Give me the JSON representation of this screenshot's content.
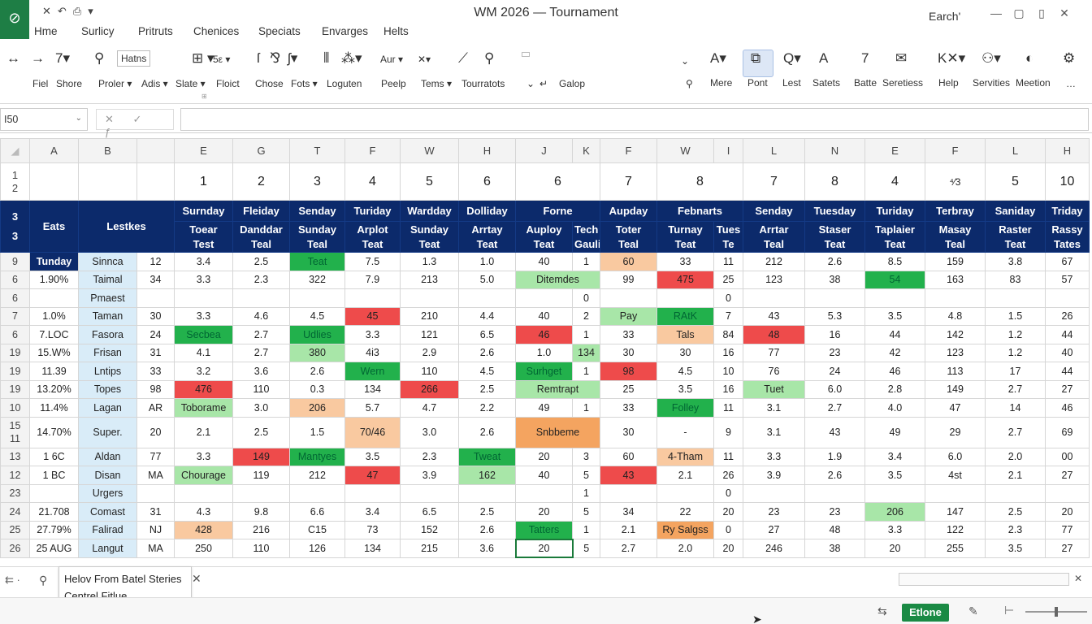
{
  "app": {
    "title": "WM 2026 — Tournament",
    "search_label": "Earch'"
  },
  "qat": {
    "items": [
      "✕",
      "↶",
      "⎙",
      "▾"
    ]
  },
  "window_controls": [
    "—",
    "▢",
    "▯",
    "✕"
  ],
  "tabs": [
    "Hme",
    "Surlicy",
    "Pritruts",
    "Chenices",
    "Speciats",
    "Envarges",
    "Helts"
  ],
  "ribbon": {
    "nav_icons": [
      "↔",
      "→",
      "7▾"
    ],
    "labels_row": [
      "Fiel",
      "Shore",
      "Proler ▾",
      "Adis ▾",
      "Slate ▾",
      "Floict",
      "Chose",
      "Fots ▾",
      "Loguten",
      "Peelp",
      "Tems ▾",
      "Tourratots"
    ],
    "font_box": "Hatns",
    "icons_mid": [
      "⚲",
      "⊞ ▾",
      "5ε ▾",
      "ſ",
      "⅋",
      "ʃ▾",
      "⦀",
      "⁂▾",
      "Aur ▾",
      "✕▾",
      "⟋",
      "⚲"
    ],
    "combo_value": "",
    "galop_label": "Galop",
    "right_labels": [
      "Mere",
      "Pont",
      "Lest",
      "Satets",
      "Batte",
      "Seretiess",
      "Help",
      "Servities",
      "Meetion"
    ],
    "right_icons": [
      "A▾",
      "⧉",
      "Q▾",
      "A",
      "7",
      "✉",
      "K✕▾",
      "⚇▾",
      "◐",
      "⚙"
    ],
    "ghost_tails": [
      "⊞",
      "…"
    ]
  },
  "formula_bar": {
    "name_box": "I50",
    "fx_icons": "✕ ✓ ƒ",
    "value": ""
  },
  "grid": {
    "columns": [
      "A",
      "B",
      "",
      "E",
      "G",
      "T",
      "F",
      "W",
      "H",
      "J",
      "K",
      "F",
      "W",
      "I",
      "L",
      "N",
      "E",
      "F",
      "L",
      "H"
    ],
    "row1_label": "1",
    "row2_label": "2",
    "numbers_row": [
      "1",
      "2",
      "3",
      "4",
      "5",
      "6",
      "6",
      "7",
      "8",
      "7",
      "8",
      "4",
      "⁴⁄3",
      "5",
      "10"
    ],
    "head_rows": [
      "3",
      "3"
    ],
    "head_left": [
      "Eats",
      "Lestkes"
    ],
    "days": [
      "Surnday",
      "Fleiday",
      "Senday",
      "Turiday",
      "Wardday",
      "Dolliday",
      "Forne",
      "Aupday",
      "Febnarts",
      "Senday",
      "Tuesday",
      "Turiday",
      "Terbray",
      "Saniday",
      "Triday"
    ],
    "subs": [
      "Toear Test",
      "Danddar Teal",
      "Sunday Teal",
      "Arplot Teat",
      "Sunday Teat",
      "Arrtay Teat",
      "Auploy Teat",
      "Tech Gauli",
      "Toter Teal",
      "Turnay Teat",
      "Tues Te",
      "Arrtar Teal",
      "Staser Teat",
      "Taplaier Teat",
      "Masay Teal",
      "Raster Teat",
      "Rassy Tates"
    ],
    "rows": [
      {
        "h": "9",
        "c": [
          "Tunday",
          "Sinnca",
          "12",
          "3.4",
          "2.5",
          "Teat",
          "7.5",
          "1.3",
          "1.0",
          "40",
          "1",
          "60",
          "33",
          "11",
          "212",
          "2.6",
          "8.5",
          "159",
          "3.8",
          "67"
        ]
      },
      {
        "h": "6",
        "c": [
          "1.90%",
          "Taimal",
          "34",
          "3.3",
          "2.3",
          "322",
          "7.9",
          "213",
          "5.0",
          "Ditemdes",
          "",
          "99",
          "475",
          "25",
          "123",
          "38",
          "54",
          "163",
          "83",
          "57"
        ]
      },
      {
        "h": "6",
        "c": [
          "",
          "Pmaest",
          "",
          "",
          "",
          "",
          "",
          "",
          "",
          "",
          "0",
          "",
          "",
          "0",
          "",
          "",
          "",
          "",
          "",
          ""
        ]
      },
      {
        "h": "7",
        "c": [
          "1.0%",
          "Taman",
          "30",
          "3.3",
          "4.6",
          "4.5",
          "45",
          "210",
          "4.4",
          "40",
          "2",
          "Pay",
          "RAtK",
          "7",
          "43",
          "5.3",
          "3.5",
          "4.8",
          "1.5",
          "26"
        ]
      },
      {
        "h": "6",
        "c": [
          "7.LOC",
          "Fasora",
          "24",
          "Secbea",
          "2.7",
          "Udlies",
          "3.3",
          "121",
          "6.5",
          "46",
          "1",
          "33",
          "Tals",
          "84",
          "48",
          "16",
          "44",
          "142",
          "1.2",
          "44"
        ]
      },
      {
        "h": "19",
        "c": [
          "15.W%",
          "Frisan",
          "31",
          "4.1",
          "2.7",
          "380",
          "4i3",
          "2.9",
          "2.6",
          "1.0",
          "134",
          "30",
          "30",
          "16",
          "77",
          "23",
          "42",
          "123",
          "1.2",
          "40"
        ]
      },
      {
        "h": "19",
        "c": [
          "11.39",
          "Lntips",
          "33",
          "3.2",
          "3.6",
          "2.6",
          "Wern",
          "110",
          "4.5",
          "Surhget",
          "1",
          "98",
          "4.5",
          "10",
          "76",
          "24",
          "46",
          "113",
          "17",
          "44"
        ]
      },
      {
        "h": "19",
        "c": [
          "13.20%",
          "Topes",
          "98",
          "476",
          "110",
          "0.3",
          "134",
          "266",
          "2.5",
          "Remtrapt",
          "",
          "25",
          "3.5",
          "16",
          "Tuet",
          "6.0",
          "2.8",
          "149",
          "2.7",
          "27"
        ]
      },
      {
        "h": "10",
        "c": [
          "11.4%",
          "Lagan",
          "AR",
          "Toborame",
          "3.0",
          "206",
          "5.7",
          "4.7",
          "2.2",
          "49",
          "1",
          "33",
          "Folley",
          "11",
          "3.1",
          "2.7",
          "4.0",
          "47",
          "14",
          "46"
        ]
      },
      {
        "h": "15",
        "h2": "11",
        "c": [
          "14.70%",
          "Super.",
          "20",
          "2.1",
          "2.5",
          "1.5",
          "70/46",
          "3.0",
          "2.6",
          "Snbbeme",
          "",
          "30",
          "-",
          "9",
          "3.1",
          "43",
          "49",
          "29",
          "2.7",
          "69"
        ]
      },
      {
        "h": "13",
        "c": [
          "1 6C",
          "Aldan",
          "77",
          "3.3",
          "149",
          "Mantyes",
          "3.5",
          "2.3",
          "Tweat",
          "20",
          "3",
          "60",
          "4-Tham",
          "11",
          "3.3",
          "1.9",
          "3.4",
          "6.0",
          "2.0",
          "00"
        ]
      },
      {
        "h": "12",
        "c": [
          "1 BC",
          "Disan",
          "MA",
          "Chourage",
          "119",
          "212",
          "47",
          "3.9",
          "162",
          "40",
          "5",
          "43",
          "2.1",
          "26",
          "3.9",
          "2.6",
          "3.5",
          "4st",
          "2.1",
          "27"
        ]
      },
      {
        "h": "23",
        "c": [
          "",
          "Urgers",
          "",
          "",
          "",
          "",
          "",
          "",
          "",
          "",
          "1",
          "",
          "",
          "0",
          "",
          "",
          "",
          "",
          "",
          ""
        ]
      },
      {
        "h": "24",
        "c": [
          "21.708",
          "Comast",
          "31",
          "4.3",
          "9.8",
          "6.6",
          "3.4",
          "6.5",
          "2.5",
          "20",
          "5",
          "34",
          "22",
          "20",
          "23",
          "23",
          "206",
          "147",
          "2.5",
          "20"
        ]
      },
      {
        "h": "25",
        "c": [
          "27.79%",
          "Falirad",
          "NJ",
          "428",
          "216",
          "C15",
          "73",
          "152",
          "2.6",
          "Tatters",
          "1",
          "2.1",
          "Ry Salgss",
          "0",
          "27",
          "48",
          "3.3",
          "122",
          "2.3",
          "77"
        ]
      },
      {
        "h": "26",
        "c": [
          "25 AUG",
          "Langut",
          "MA",
          "250",
          "110",
          "126",
          "134",
          "215",
          "3.6",
          "20",
          "5",
          "2.7",
          "2.0",
          "20",
          "246",
          "38",
          "20",
          "255",
          "3.5",
          "27"
        ]
      }
    ]
  },
  "tooltip": {
    "line1": "Helov From Batel Steries",
    "line2": "Centrel Fitlue"
  },
  "sheetbar": {
    "nav": "⇇ ·",
    "add": "⚲",
    "close": "✕",
    "hclose": "✕"
  },
  "status": {
    "icons": "⇆",
    "button": "Etlone",
    "pen": "✎",
    "minus": "⊢"
  }
}
